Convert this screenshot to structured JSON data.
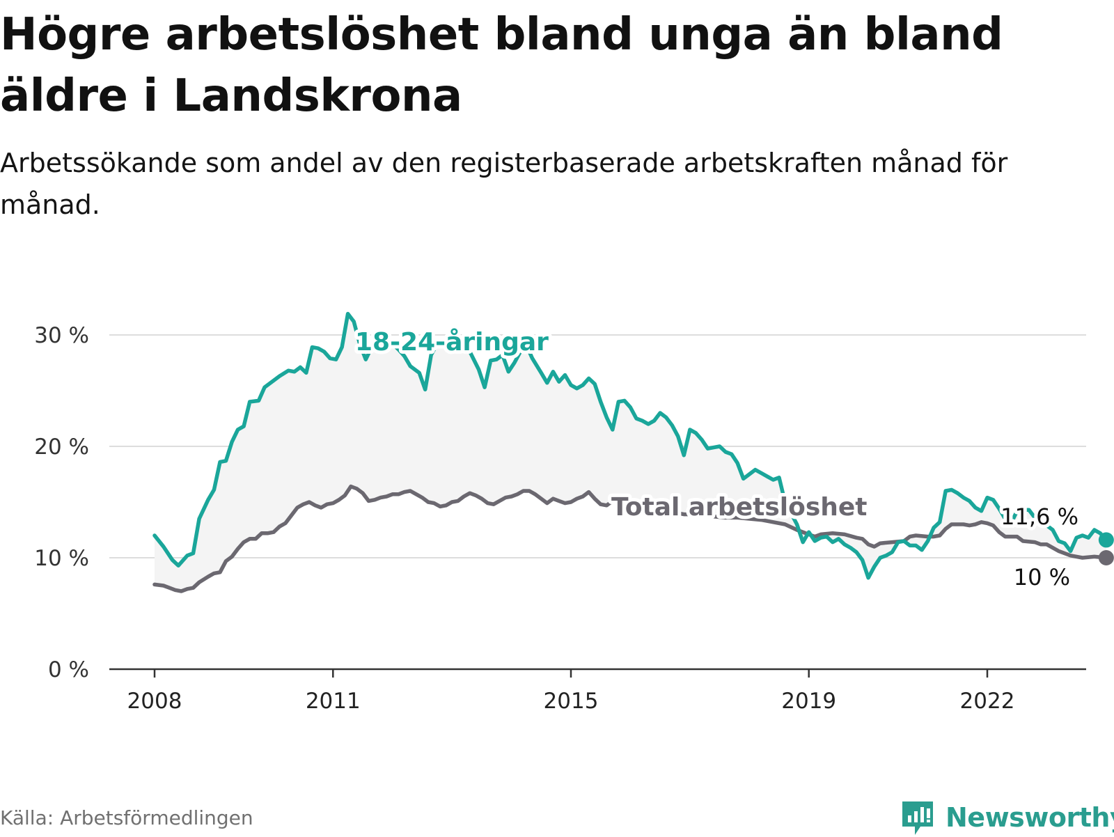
{
  "header": {
    "title": "Högre arbetslöshet bland unga än bland äldre i Landskrona",
    "subtitle": "Arbetssökande som andel av den registerbaserade arbetskraften månad för månad."
  },
  "footer": {
    "source": "Källa: Arbetsförmedlingen",
    "brand": "Newsworthy"
  },
  "colors": {
    "youth": "#1aa69a",
    "total": "#6b6870",
    "band": "#f4f4f4",
    "grid": "#dddddd",
    "axis": "#333333"
  },
  "chart_data": {
    "type": "line",
    "title": "Högre arbetslöshet bland unga än bland äldre i Landskrona",
    "xlabel": "",
    "ylabel": "",
    "ylim": [
      0,
      30
    ],
    "xlim": [
      2008,
      2023
    ],
    "y_ticks": [
      0,
      10,
      20,
      30
    ],
    "y_tick_labels": [
      "0 %",
      "10 %",
      "20 %",
      "30 %"
    ],
    "x_ticks": [
      2008,
      2011,
      2015,
      2019,
      2022
    ],
    "x_tick_labels": [
      "2008",
      "2011",
      "2015",
      "2019",
      "2022"
    ],
    "grid": true,
    "shaded_between_series": true,
    "series": [
      {
        "name": "18-24-åringar",
        "label": "18-24-åringar",
        "end_label": "11,6 %",
        "color": "#1aa69a",
        "points": [
          [
            2008.0,
            12.0
          ],
          [
            2008.15,
            11.0
          ],
          [
            2008.3,
            9.8
          ],
          [
            2008.4,
            9.3
          ],
          [
            2008.55,
            10.2
          ],
          [
            2008.65,
            10.4
          ],
          [
            2008.75,
            13.5
          ],
          [
            2008.9,
            15.2
          ],
          [
            2009.0,
            16.1
          ],
          [
            2009.1,
            18.6
          ],
          [
            2009.2,
            18.7
          ],
          [
            2009.3,
            20.4
          ],
          [
            2009.4,
            21.5
          ],
          [
            2009.5,
            21.8
          ],
          [
            2009.6,
            24.0
          ],
          [
            2009.75,
            24.1
          ],
          [
            2009.85,
            25.3
          ],
          [
            2010.0,
            25.9
          ],
          [
            2010.1,
            26.3
          ],
          [
            2010.25,
            26.8
          ],
          [
            2010.35,
            26.7
          ],
          [
            2010.45,
            27.1
          ],
          [
            2010.55,
            26.6
          ],
          [
            2010.65,
            28.9
          ],
          [
            2010.75,
            28.8
          ],
          [
            2010.85,
            28.5
          ],
          [
            2010.95,
            27.9
          ],
          [
            2011.05,
            27.8
          ],
          [
            2011.15,
            28.9
          ],
          [
            2011.25,
            31.9
          ],
          [
            2011.35,
            31.2
          ],
          [
            2011.45,
            29.2
          ],
          [
            2011.55,
            27.8
          ],
          [
            2011.65,
            28.9
          ],
          [
            2011.75,
            29.4
          ],
          [
            2011.9,
            29.4
          ],
          [
            2012.0,
            29.2
          ],
          [
            2012.1,
            28.7
          ],
          [
            2012.2,
            28.1
          ],
          [
            2012.3,
            27.2
          ],
          [
            2012.45,
            26.6
          ],
          [
            2012.55,
            25.1
          ],
          [
            2012.65,
            28.2
          ],
          [
            2012.75,
            29.2
          ],
          [
            2012.85,
            29.5
          ],
          [
            2013.0,
            29.3
          ],
          [
            2013.1,
            29.4
          ],
          [
            2013.2,
            29.0
          ],
          [
            2013.3,
            28.5
          ],
          [
            2013.45,
            26.9
          ],
          [
            2013.55,
            25.3
          ],
          [
            2013.65,
            27.7
          ],
          [
            2013.75,
            27.8
          ],
          [
            2013.85,
            28.2
          ],
          [
            2013.95,
            26.7
          ],
          [
            2014.05,
            27.5
          ],
          [
            2014.15,
            28.5
          ],
          [
            2014.25,
            29.1
          ],
          [
            2014.35,
            27.9
          ],
          [
            2014.5,
            26.6
          ],
          [
            2014.6,
            25.7
          ],
          [
            2014.7,
            26.7
          ],
          [
            2014.8,
            25.8
          ],
          [
            2014.9,
            26.4
          ],
          [
            2015.0,
            25.5
          ],
          [
            2015.1,
            25.2
          ],
          [
            2015.2,
            25.5
          ],
          [
            2015.3,
            26.1
          ],
          [
            2015.4,
            25.6
          ],
          [
            2015.5,
            24.0
          ],
          [
            2015.6,
            22.6
          ],
          [
            2015.7,
            21.5
          ],
          [
            2015.8,
            24.0
          ],
          [
            2015.9,
            24.1
          ],
          [
            2016.0,
            23.5
          ],
          [
            2016.1,
            22.5
          ],
          [
            2016.2,
            22.3
          ],
          [
            2016.3,
            22.0
          ],
          [
            2016.4,
            22.3
          ],
          [
            2016.5,
            23.0
          ],
          [
            2016.6,
            22.6
          ],
          [
            2016.7,
            21.9
          ],
          [
            2016.8,
            20.9
          ],
          [
            2016.9,
            19.2
          ],
          [
            2017.0,
            21.5
          ],
          [
            2017.1,
            21.2
          ],
          [
            2017.2,
            20.6
          ],
          [
            2017.3,
            19.8
          ],
          [
            2017.4,
            19.9
          ],
          [
            2017.5,
            20.0
          ],
          [
            2017.6,
            19.5
          ],
          [
            2017.7,
            19.3
          ],
          [
            2017.8,
            18.5
          ],
          [
            2017.9,
            17.1
          ],
          [
            2018.0,
            17.5
          ],
          [
            2018.1,
            17.9
          ],
          [
            2018.2,
            17.6
          ],
          [
            2018.3,
            17.3
          ],
          [
            2018.4,
            17.0
          ],
          [
            2018.5,
            17.2
          ],
          [
            2018.6,
            15.0
          ],
          [
            2018.7,
            14.0
          ],
          [
            2018.8,
            13.0
          ],
          [
            2018.9,
            11.4
          ],
          [
            2019.0,
            12.3
          ],
          [
            2019.1,
            11.5
          ],
          [
            2019.2,
            11.8
          ],
          [
            2019.3,
            11.9
          ],
          [
            2019.4,
            11.4
          ],
          [
            2019.5,
            11.7
          ],
          [
            2019.6,
            11.2
          ],
          [
            2019.7,
            10.9
          ],
          [
            2019.8,
            10.5
          ],
          [
            2019.9,
            9.8
          ],
          [
            2020.0,
            8.2
          ],
          [
            2020.1,
            9.2
          ],
          [
            2020.2,
            10.0
          ],
          [
            2020.3,
            10.2
          ],
          [
            2020.4,
            10.5
          ],
          [
            2020.5,
            11.4
          ],
          [
            2020.6,
            11.5
          ],
          [
            2020.7,
            11.1
          ],
          [
            2020.8,
            11.1
          ],
          [
            2020.9,
            10.7
          ],
          [
            2021.0,
            11.5
          ],
          [
            2021.1,
            12.7
          ],
          [
            2021.2,
            13.2
          ],
          [
            2021.3,
            16.0
          ],
          [
            2021.4,
            16.1
          ],
          [
            2021.5,
            15.8
          ],
          [
            2021.6,
            15.4
          ],
          [
            2021.7,
            15.1
          ],
          [
            2021.8,
            14.5
          ],
          [
            2021.9,
            14.2
          ],
          [
            2022.0,
            15.4
          ],
          [
            2022.1,
            15.2
          ],
          [
            2022.2,
            14.4
          ],
          [
            2022.3,
            13.5
          ],
          [
            2022.4,
            13.1
          ],
          [
            2022.5,
            14.2
          ],
          [
            2022.6,
            14.3
          ],
          [
            2022.7,
            14.3
          ],
          [
            2022.8,
            13.6
          ],
          [
            2022.9,
            13.4
          ],
          [
            2023.0,
            12.9
          ],
          [
            2023.1,
            12.5
          ],
          [
            2023.2,
            11.5
          ],
          [
            2023.3,
            11.3
          ],
          [
            2023.4,
            10.6
          ],
          [
            2023.5,
            11.8
          ],
          [
            2023.6,
            12.0
          ],
          [
            2023.7,
            11.8
          ],
          [
            2023.8,
            12.5
          ],
          [
            2023.9,
            12.2
          ],
          [
            2024.0,
            11.6
          ]
        ]
      },
      {
        "name": "Total arbetslöshet",
        "label": "Total arbetslöshet",
        "end_label": "10 %",
        "color": "#6b6870",
        "points": [
          [
            2008.0,
            7.6
          ],
          [
            2008.15,
            7.5
          ],
          [
            2008.25,
            7.3
          ],
          [
            2008.35,
            7.1
          ],
          [
            2008.45,
            7.0
          ],
          [
            2008.55,
            7.2
          ],
          [
            2008.65,
            7.3
          ],
          [
            2008.75,
            7.8
          ],
          [
            2008.9,
            8.3
          ],
          [
            2009.0,
            8.6
          ],
          [
            2009.1,
            8.7
          ],
          [
            2009.2,
            9.7
          ],
          [
            2009.3,
            10.1
          ],
          [
            2009.4,
            10.8
          ],
          [
            2009.5,
            11.4
          ],
          [
            2009.6,
            11.7
          ],
          [
            2009.7,
            11.7
          ],
          [
            2009.8,
            12.2
          ],
          [
            2009.9,
            12.2
          ],
          [
            2010.0,
            12.3
          ],
          [
            2010.1,
            12.8
          ],
          [
            2010.2,
            13.1
          ],
          [
            2010.3,
            13.8
          ],
          [
            2010.4,
            14.5
          ],
          [
            2010.5,
            14.8
          ],
          [
            2010.6,
            15.0
          ],
          [
            2010.7,
            14.7
          ],
          [
            2010.8,
            14.5
          ],
          [
            2010.9,
            14.8
          ],
          [
            2011.0,
            14.9
          ],
          [
            2011.1,
            15.2
          ],
          [
            2011.2,
            15.6
          ],
          [
            2011.3,
            16.4
          ],
          [
            2011.4,
            16.2
          ],
          [
            2011.5,
            15.8
          ],
          [
            2011.6,
            15.1
          ],
          [
            2011.7,
            15.2
          ],
          [
            2011.8,
            15.4
          ],
          [
            2011.9,
            15.5
          ],
          [
            2012.0,
            15.7
          ],
          [
            2012.1,
            15.7
          ],
          [
            2012.2,
            15.9
          ],
          [
            2012.3,
            16.0
          ],
          [
            2012.4,
            15.7
          ],
          [
            2012.5,
            15.4
          ],
          [
            2012.6,
            15.0
          ],
          [
            2012.7,
            14.9
          ],
          [
            2012.8,
            14.6
          ],
          [
            2012.9,
            14.7
          ],
          [
            2013.0,
            15.0
          ],
          [
            2013.1,
            15.1
          ],
          [
            2013.2,
            15.5
          ],
          [
            2013.3,
            15.8
          ],
          [
            2013.4,
            15.6
          ],
          [
            2013.5,
            15.3
          ],
          [
            2013.6,
            14.9
          ],
          [
            2013.7,
            14.8
          ],
          [
            2013.8,
            15.1
          ],
          [
            2013.9,
            15.4
          ],
          [
            2014.0,
            15.5
          ],
          [
            2014.1,
            15.7
          ],
          [
            2014.2,
            16.0
          ],
          [
            2014.3,
            16.0
          ],
          [
            2014.4,
            15.7
          ],
          [
            2014.5,
            15.3
          ],
          [
            2014.6,
            14.9
          ],
          [
            2014.7,
            15.3
          ],
          [
            2014.8,
            15.1
          ],
          [
            2014.9,
            14.9
          ],
          [
            2015.0,
            15.0
          ],
          [
            2015.1,
            15.3
          ],
          [
            2015.2,
            15.5
          ],
          [
            2015.3,
            15.9
          ],
          [
            2015.4,
            15.3
          ],
          [
            2015.5,
            14.8
          ],
          [
            2015.6,
            14.7
          ],
          [
            2015.7,
            15.1
          ],
          [
            2015.8,
            15.0
          ],
          [
            2015.9,
            14.6
          ],
          [
            2016.0,
            14.5
          ],
          [
            2016.1,
            14.7
          ],
          [
            2016.2,
            14.9
          ],
          [
            2016.3,
            14.7
          ],
          [
            2016.4,
            14.4
          ],
          [
            2016.5,
            14.2
          ],
          [
            2016.6,
            14.3
          ],
          [
            2016.7,
            14.1
          ],
          [
            2016.8,
            14.0
          ],
          [
            2016.9,
            13.9
          ],
          [
            2017.0,
            13.9
          ],
          [
            2017.2,
            13.8
          ],
          [
            2017.4,
            13.7
          ],
          [
            2017.6,
            13.6
          ],
          [
            2017.8,
            13.6
          ],
          [
            2018.0,
            13.5
          ],
          [
            2018.2,
            13.4
          ],
          [
            2018.4,
            13.2
          ],
          [
            2018.6,
            13.0
          ],
          [
            2018.8,
            12.5
          ],
          [
            2019.0,
            12.1
          ],
          [
            2019.1,
            11.9
          ],
          [
            2019.2,
            12.1
          ],
          [
            2019.4,
            12.2
          ],
          [
            2019.6,
            12.1
          ],
          [
            2019.8,
            11.8
          ],
          [
            2019.9,
            11.7
          ],
          [
            2020.0,
            11.2
          ],
          [
            2020.1,
            11.0
          ],
          [
            2020.2,
            11.3
          ],
          [
            2020.4,
            11.4
          ],
          [
            2020.6,
            11.5
          ],
          [
            2020.7,
            11.9
          ],
          [
            2020.8,
            12.0
          ],
          [
            2021.0,
            11.9
          ],
          [
            2021.1,
            11.9
          ],
          [
            2021.2,
            12.0
          ],
          [
            2021.3,
            12.6
          ],
          [
            2021.4,
            13.0
          ],
          [
            2021.6,
            13.0
          ],
          [
            2021.7,
            12.9
          ],
          [
            2021.8,
            13.0
          ],
          [
            2021.9,
            13.2
          ],
          [
            2022.0,
            13.1
          ],
          [
            2022.1,
            12.9
          ],
          [
            2022.2,
            12.3
          ],
          [
            2022.3,
            11.9
          ],
          [
            2022.5,
            11.9
          ],
          [
            2022.6,
            11.5
          ],
          [
            2022.8,
            11.4
          ],
          [
            2022.9,
            11.2
          ],
          [
            2023.0,
            11.2
          ],
          [
            2023.2,
            10.6
          ],
          [
            2023.4,
            10.2
          ],
          [
            2023.6,
            10.0
          ],
          [
            2023.8,
            10.1
          ],
          [
            2024.0,
            10.0
          ]
        ]
      }
    ]
  }
}
